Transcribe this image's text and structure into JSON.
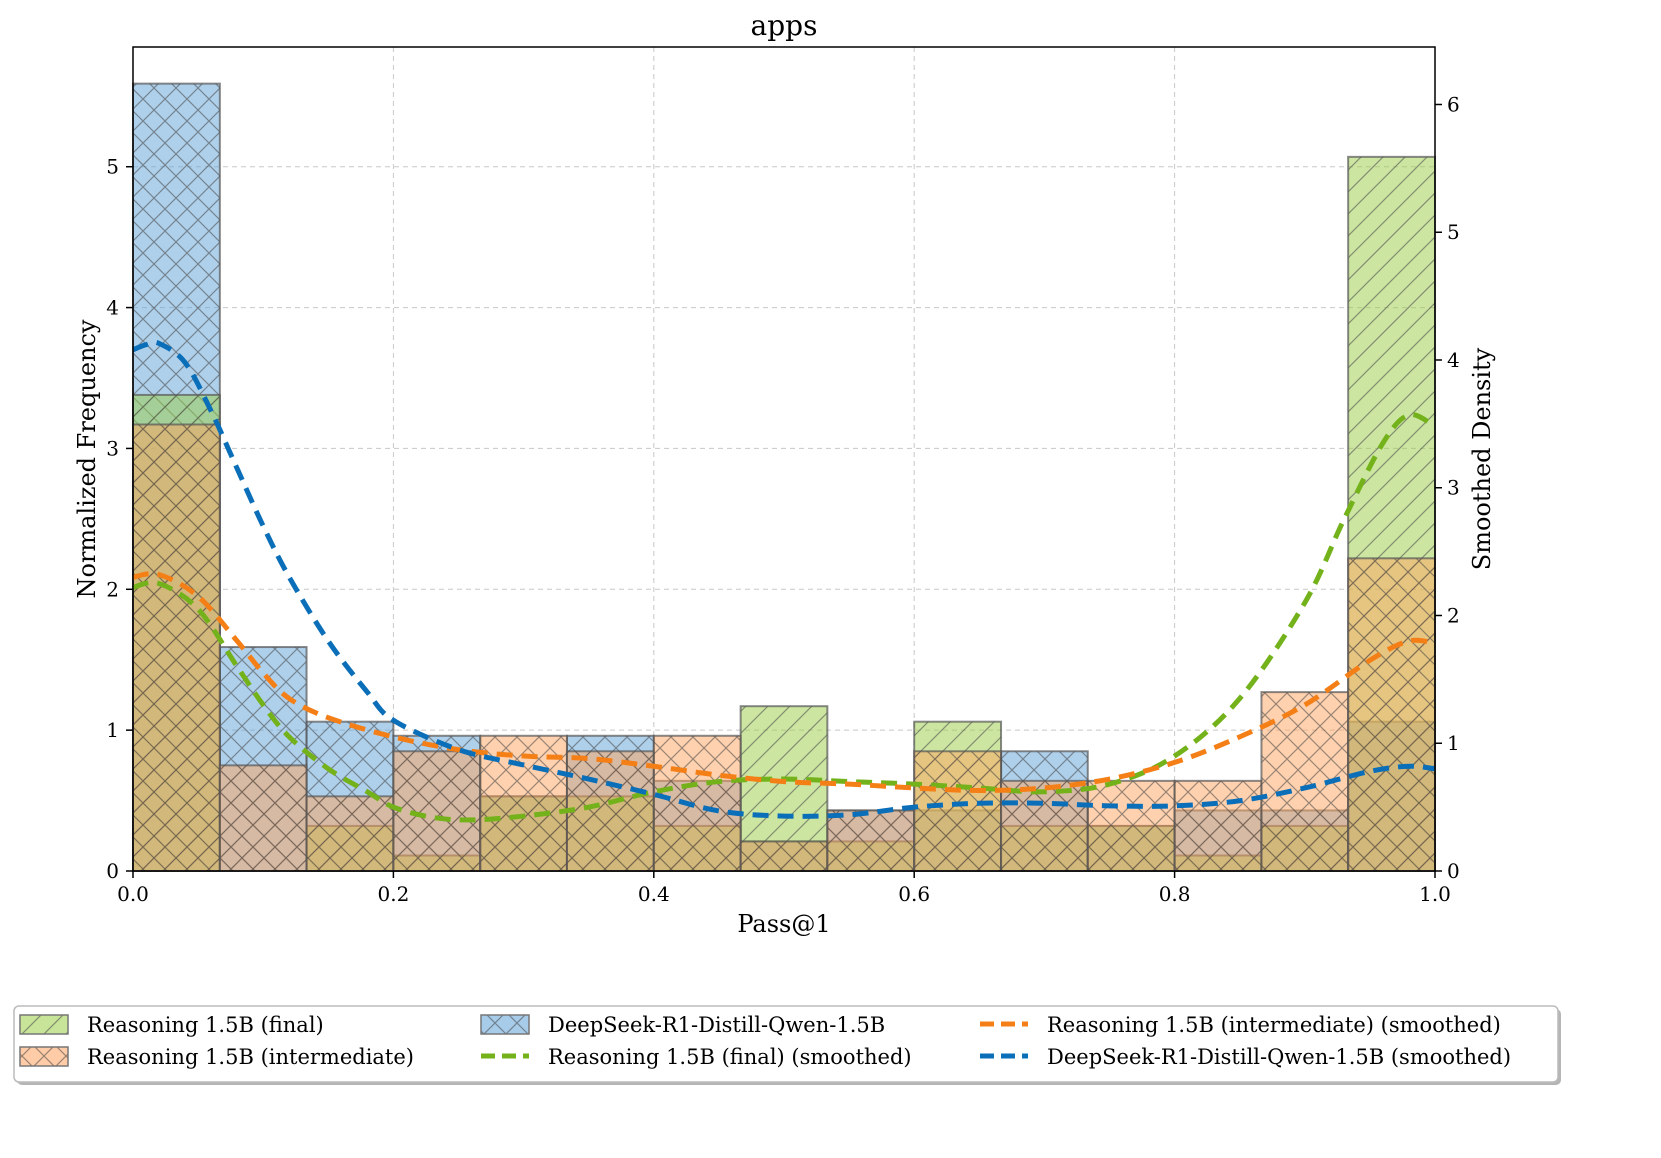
{
  "chart_data": {
    "type": "histogram",
    "title": "apps",
    "xlabel": "Pass@1",
    "ylabel": "Normalized Frequency",
    "y2label": "Smoothed Density",
    "xlim": [
      0.0,
      1.0
    ],
    "ylim": [
      0,
      5.85
    ],
    "y2lim": [
      0,
      6.45
    ],
    "grid": true,
    "xticks": [
      0.0,
      0.2,
      0.4,
      0.6,
      0.8,
      1.0
    ],
    "xtick_labels": [
      "0.0",
      "0.2",
      "0.4",
      "0.6",
      "0.8",
      "1.0"
    ],
    "yticks": [
      0,
      1,
      2,
      3,
      4,
      5
    ],
    "ytick_labels": [
      "0",
      "1",
      "2",
      "3",
      "4",
      "5"
    ],
    "y2ticks": [
      0,
      1,
      2,
      3,
      4,
      5,
      6
    ],
    "y2tick_labels": [
      "0",
      "1",
      "2",
      "3",
      "4",
      "5",
      "6"
    ],
    "bin_edges": [
      0.0,
      0.0667,
      0.1333,
      0.2,
      0.2667,
      0.3333,
      0.4,
      0.4667,
      0.5333,
      0.6,
      0.6667,
      0.7333,
      0.8,
      0.8667,
      0.9333,
      1.0
    ],
    "histograms": [
      {
        "name": "DeepSeek-R1-Distill-Qwen-1.5B",
        "color": "#5fa2d8",
        "hatch": "cross",
        "values": [
          5.59,
          1.59,
          1.06,
          0.96,
          0.53,
          0.96,
          0.64,
          0.21,
          0.43,
          0.43,
          0.85,
          0.32,
          0.43,
          0.43,
          1.06
        ]
      },
      {
        "name": "Reasoning 1.5B (final)",
        "color": "#9acd46",
        "hatch": "diagonal",
        "values": [
          3.38,
          0.0,
          0.32,
          0.11,
          0.53,
          0.53,
          0.32,
          1.17,
          0.21,
          1.06,
          0.32,
          0.32,
          0.11,
          0.32,
          5.07
        ]
      },
      {
        "name": "Reasoning 1.5B (intermediate)",
        "color": "#ffa35e",
        "hatch": "cross",
        "values": [
          3.17,
          0.75,
          0.53,
          0.85,
          0.96,
          0.85,
          0.96,
          0.21,
          0.43,
          0.85,
          0.64,
          0.64,
          0.64,
          1.27,
          2.22
        ]
      }
    ],
    "smoothed": [
      {
        "name": "Reasoning 1.5B (final) (smoothed)",
        "color": "#73b21a",
        "x": [
          0.0,
          0.02,
          0.05,
          0.08,
          0.1,
          0.12,
          0.15,
          0.18,
          0.2,
          0.23,
          0.26,
          0.3,
          0.35,
          0.4,
          0.45,
          0.5,
          0.55,
          0.6,
          0.65,
          0.7,
          0.75,
          0.8,
          0.85,
          0.9,
          0.93,
          0.96,
          0.98,
          1.0
        ],
        "y": [
          2.22,
          2.25,
          2.05,
          1.6,
          1.3,
          1.05,
          0.8,
          0.62,
          0.5,
          0.42,
          0.4,
          0.43,
          0.5,
          0.62,
          0.7,
          0.72,
          0.7,
          0.68,
          0.65,
          0.62,
          0.68,
          0.9,
          1.35,
          2.1,
          2.75,
          3.35,
          3.57,
          3.48
        ]
      },
      {
        "name": "Reasoning 1.5B (intermediate) (smoothed)",
        "color": "#f57f17",
        "x": [
          0.0,
          0.02,
          0.05,
          0.08,
          0.1,
          0.12,
          0.15,
          0.2,
          0.25,
          0.3,
          0.35,
          0.4,
          0.45,
          0.5,
          0.55,
          0.6,
          0.65,
          0.7,
          0.75,
          0.8,
          0.85,
          0.9,
          0.95,
          0.98,
          1.0
        ],
        "y": [
          2.3,
          2.32,
          2.15,
          1.8,
          1.55,
          1.35,
          1.2,
          1.05,
          0.95,
          0.9,
          0.88,
          0.82,
          0.75,
          0.7,
          0.68,
          0.65,
          0.63,
          0.65,
          0.72,
          0.85,
          1.05,
          1.3,
          1.65,
          1.8,
          1.78
        ]
      },
      {
        "name": "DeepSeek-R1-Distill-Qwen-1.5B (smoothed)",
        "color": "#0a6fb8",
        "x": [
          0.0,
          0.01,
          0.02,
          0.04,
          0.06,
          0.08,
          0.1,
          0.12,
          0.15,
          0.18,
          0.2,
          0.25,
          0.3,
          0.35,
          0.4,
          0.45,
          0.5,
          0.55,
          0.6,
          0.65,
          0.7,
          0.75,
          0.8,
          0.85,
          0.9,
          0.95,
          0.98,
          1.0
        ],
        "y": [
          4.08,
          4.12,
          4.13,
          3.98,
          3.6,
          3.15,
          2.7,
          2.3,
          1.8,
          1.4,
          1.18,
          0.95,
          0.83,
          0.72,
          0.6,
          0.47,
          0.43,
          0.44,
          0.5,
          0.53,
          0.53,
          0.51,
          0.51,
          0.55,
          0.65,
          0.78,
          0.82,
          0.8
        ]
      }
    ],
    "legend": {
      "placement": "bottom",
      "entries": [
        {
          "label": "Reasoning 1.5B (final)",
          "kind": "patch",
          "color": "#9acd46",
          "hatch": "diagonal"
        },
        {
          "label": "Reasoning 1.5B (intermediate)",
          "kind": "patch",
          "color": "#ffa35e",
          "hatch": "cross"
        },
        {
          "label": "DeepSeek-R1-Distill-Qwen-1.5B",
          "kind": "patch",
          "color": "#5fa2d8",
          "hatch": "cross"
        },
        {
          "label": "Reasoning 1.5B (final) (smoothed)",
          "kind": "line",
          "color": "#73b21a"
        },
        {
          "label": "Reasoning 1.5B (intermediate) (smoothed)",
          "kind": "line",
          "color": "#f57f17"
        },
        {
          "label": "DeepSeek-R1-Distill-Qwen-1.5B (smoothed)",
          "kind": "line",
          "color": "#0a6fb8"
        }
      ]
    }
  }
}
